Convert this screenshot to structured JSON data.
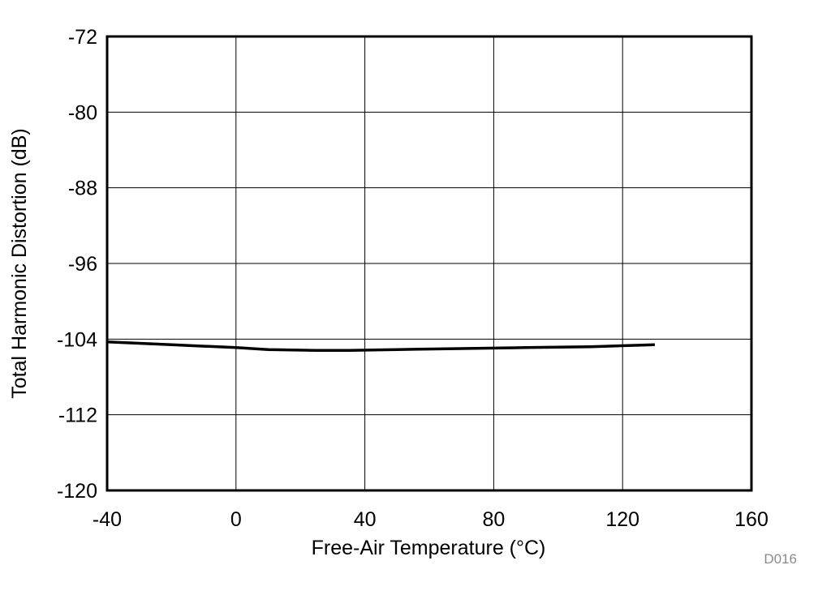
{
  "figure_id": "D016",
  "colors": {
    "line": "#000000",
    "grid": "#000000",
    "frame": "#000000",
    "background": "#ffffff",
    "figure_id": "#8a8a8a"
  },
  "chart_data": {
    "type": "line",
    "title": "",
    "xlabel": "Free-Air Temperature (°C)",
    "ylabel": "Total Harmonic Distortion (dB)",
    "xlim": [
      -40,
      160
    ],
    "ylim": [
      -120,
      -72
    ],
    "xticks": [
      -40,
      0,
      40,
      80,
      120,
      160
    ],
    "yticks": [
      -72,
      -80,
      -88,
      -96,
      -104,
      -112,
      -120
    ],
    "grid": true,
    "legend": "none",
    "series": [
      {
        "x": [
          -40,
          -20,
          0,
          10,
          25,
          35,
          50,
          70,
          90,
          110,
          130
        ],
        "y": [
          -104.3,
          -104.6,
          -104.9,
          -105.1,
          -105.2,
          -105.2,
          -105.1,
          -105.0,
          -104.9,
          -104.8,
          -104.6
        ]
      }
    ]
  }
}
